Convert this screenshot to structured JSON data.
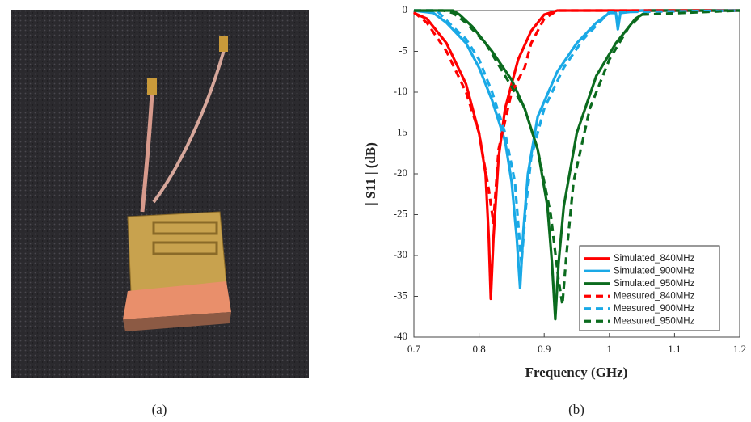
{
  "chart_data": {
    "type": "line",
    "caption_left": "(a)",
    "caption_right": "(b)",
    "xlabel": "Frequency (GHz)",
    "ylabel": "| S11 | (dB)",
    "xlim": [
      0.7,
      1.2
    ],
    "ylim": [
      -40,
      0
    ],
    "xticks": [
      0.7,
      0.8,
      0.9,
      1,
      1.1,
      1.2
    ],
    "yticks": [
      0,
      -5,
      -10,
      -15,
      -20,
      -25,
      -30,
      -35,
      -40
    ],
    "legend": "lower-right",
    "series": [
      {
        "name": "Simulated_840MHz",
        "color": "#ff0000",
        "dashed": false,
        "x": [
          0.7,
          0.72,
          0.75,
          0.78,
          0.8,
          0.81,
          0.815,
          0.818,
          0.822,
          0.83,
          0.84,
          0.86,
          0.88,
          0.9,
          0.92,
          1.2
        ],
        "values": [
          -0.3,
          -1,
          -4,
          -9,
          -15,
          -20,
          -28,
          -35.3,
          -28,
          -18,
          -12,
          -6,
          -2.5,
          -0.5,
          0,
          0
        ]
      },
      {
        "name": "Simulated_900MHz",
        "color": "#1aa9e6",
        "dashed": false,
        "x": [
          0.7,
          0.73,
          0.75,
          0.78,
          0.8,
          0.82,
          0.84,
          0.85,
          0.858,
          0.863,
          0.868,
          0.875,
          0.89,
          0.92,
          0.95,
          0.98,
          1.0,
          1.01,
          1.013,
          1.017,
          1.05,
          1.2
        ],
        "values": [
          0,
          -0.3,
          -1.5,
          -4,
          -7,
          -11,
          -16,
          -21,
          -28,
          -34,
          -27,
          -20,
          -13,
          -7.5,
          -4,
          -1.5,
          -0.3,
          -0.3,
          -2.3,
          -0.3,
          0,
          0
        ]
      },
      {
        "name": "Simulated_950MHz",
        "color": "#0b6b1e",
        "dashed": false,
        "x": [
          0.7,
          0.76,
          0.77,
          0.79,
          0.82,
          0.85,
          0.87,
          0.89,
          0.905,
          0.912,
          0.917,
          0.922,
          0.93,
          0.95,
          0.98,
          1.01,
          1.04,
          1.06,
          1.2
        ],
        "values": [
          0,
          0,
          -0.5,
          -2,
          -5,
          -8.5,
          -12,
          -17,
          -24,
          -31,
          -37.8,
          -31,
          -24,
          -15,
          -8,
          -4,
          -1,
          0,
          0
        ]
      },
      {
        "name": "Measured_840MHz",
        "color": "#ff0000",
        "dashed": true,
        "x": [
          0.7,
          0.72,
          0.75,
          0.78,
          0.8,
          0.815,
          0.822,
          0.83,
          0.85,
          0.87,
          0.88,
          0.9,
          0.92,
          1.2
        ],
        "values": [
          -0.2,
          -1.5,
          -5,
          -10,
          -15,
          -22,
          -26,
          -17,
          -10,
          -7,
          -4,
          -1,
          0,
          0
        ]
      },
      {
        "name": "Measured_900MHz",
        "color": "#1aa9e6",
        "dashed": true,
        "x": [
          0.7,
          0.735,
          0.745,
          0.76,
          0.78,
          0.8,
          0.82,
          0.84,
          0.855,
          0.865,
          0.872,
          0.88,
          0.9,
          0.93,
          0.96,
          0.99,
          1.0,
          1.2
        ],
        "values": [
          0,
          0,
          -0.8,
          -2,
          -3.5,
          -6,
          -10,
          -15,
          -21,
          -31,
          -24,
          -18,
          -12,
          -7,
          -3.5,
          -1,
          -0.2,
          0
        ]
      },
      {
        "name": "Measured_950MHz",
        "color": "#0b6b1e",
        "dashed": true,
        "x": [
          0.7,
          0.745,
          0.76,
          0.78,
          0.81,
          0.84,
          0.87,
          0.89,
          0.91,
          0.922,
          0.928,
          0.934,
          0.945,
          0.97,
          1.0,
          1.03,
          1.05,
          1.2
        ],
        "values": [
          0,
          0,
          -0.3,
          -1.5,
          -4,
          -8,
          -12,
          -17,
          -25,
          -33,
          -36,
          -30,
          -21,
          -12,
          -6,
          -2,
          -0.5,
          0
        ]
      }
    ]
  }
}
